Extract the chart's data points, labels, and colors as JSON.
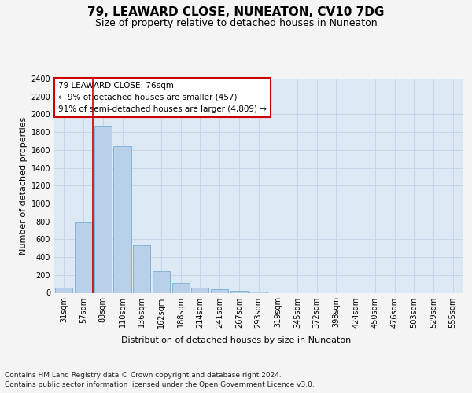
{
  "title": "79, LEAWARD CLOSE, NUNEATON, CV10 7DG",
  "subtitle": "Size of property relative to detached houses in Nuneaton",
  "xlabel": "Distribution of detached houses by size in Nuneaton",
  "ylabel": "Number of detached properties",
  "footer_line1": "Contains HM Land Registry data © Crown copyright and database right 2024.",
  "footer_line2": "Contains public sector information licensed under the Open Government Licence v3.0.",
  "categories": [
    "31sqm",
    "57sqm",
    "83sqm",
    "110sqm",
    "136sqm",
    "162sqm",
    "188sqm",
    "214sqm",
    "241sqm",
    "267sqm",
    "293sqm",
    "319sqm",
    "345sqm",
    "372sqm",
    "398sqm",
    "424sqm",
    "450sqm",
    "476sqm",
    "503sqm",
    "529sqm",
    "555sqm"
  ],
  "values": [
    60,
    790,
    1870,
    1640,
    530,
    240,
    110,
    60,
    40,
    25,
    15,
    0,
    0,
    0,
    0,
    0,
    0,
    0,
    0,
    0,
    0
  ],
  "bar_color": "#b8d0ea",
  "bar_edge_color": "#7aaed4",
  "highlight_line_color": "#cc0000",
  "annotation_text": "79 LEAWARD CLOSE: 76sqm\n← 9% of detached houses are smaller (457)\n91% of semi-detached houses are larger (4,809) →",
  "ylim": [
    0,
    2400
  ],
  "yticks": [
    0,
    200,
    400,
    600,
    800,
    1000,
    1200,
    1400,
    1600,
    1800,
    2000,
    2200,
    2400
  ],
  "grid_color": "#c8d4e8",
  "axes_bg_color": "#dce8f4",
  "fig_bg_color": "#f4f4f4",
  "title_fontsize": 11,
  "subtitle_fontsize": 9,
  "ylabel_fontsize": 8,
  "xlabel_fontsize": 8,
  "tick_fontsize": 7,
  "annotation_fontsize": 7.5,
  "footer_fontsize": 6.5
}
